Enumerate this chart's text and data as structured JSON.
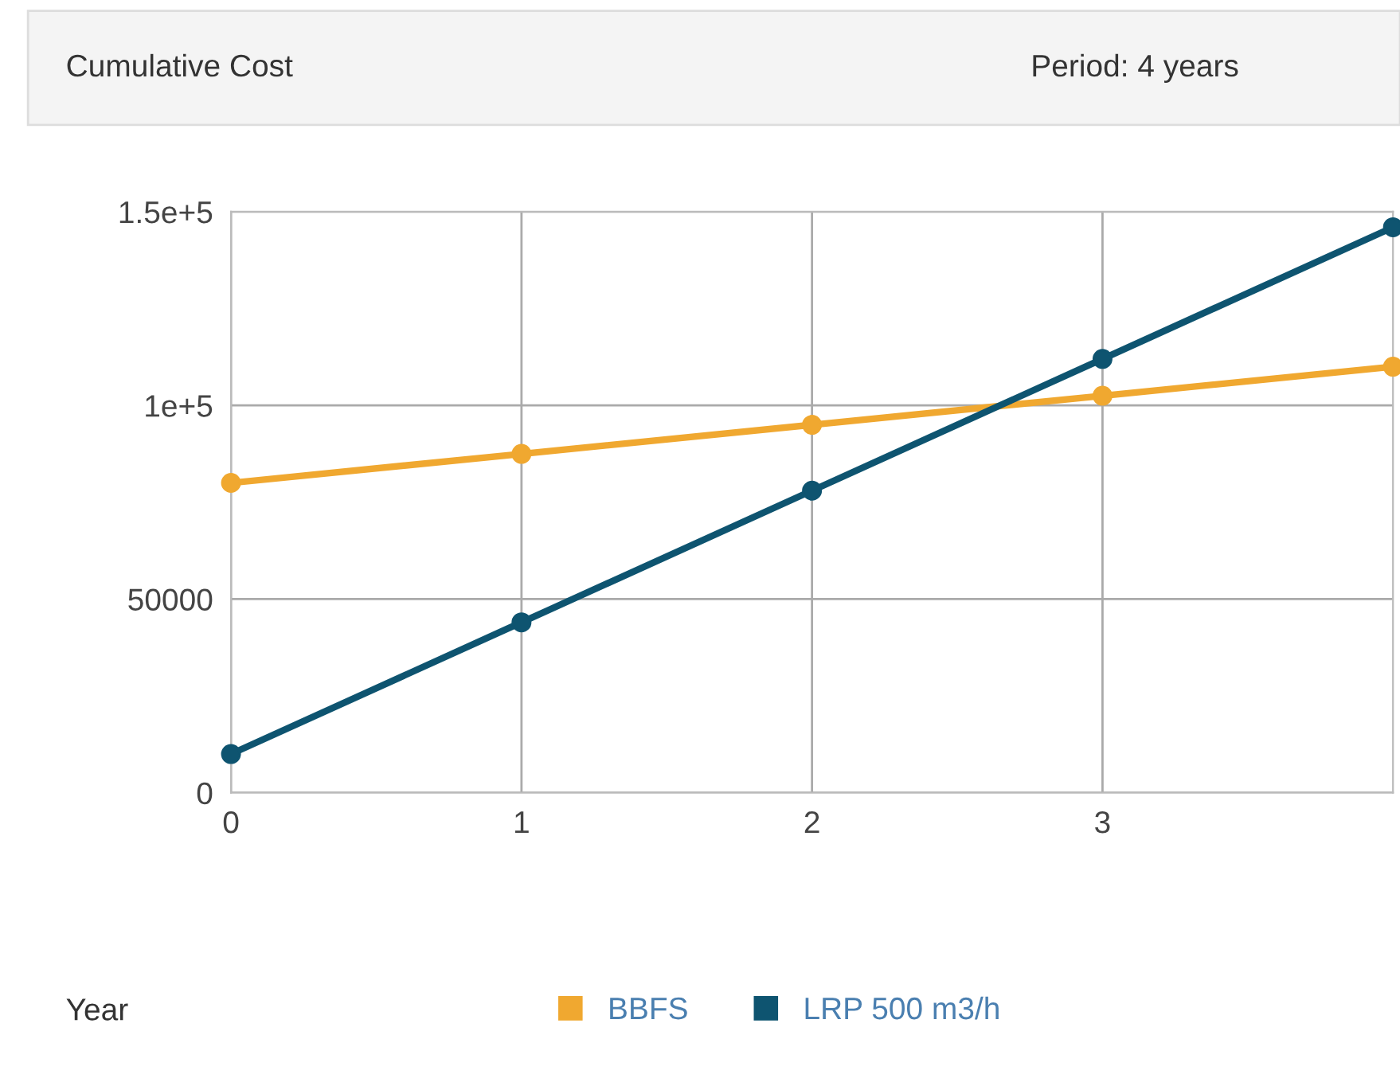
{
  "chart_data": {
    "type": "line",
    "title": "Cumulative Cost",
    "subtitle": "Period: 4 years",
    "annotations": [
      "Year"
    ],
    "x": [
      0,
      1,
      2,
      3,
      4
    ],
    "series": [
      {
        "name": "BBFS",
        "color": "#f0a830",
        "values": [
          80000,
          87500,
          95000,
          102500,
          110000
        ]
      },
      {
        "name": "LRP 500 m3/h",
        "color": "#0e5470",
        "values": [
          10000,
          44000,
          78000,
          112000,
          146000
        ]
      }
    ],
    "xlim": [
      0,
      4
    ],
    "xticks": [
      0,
      1,
      2,
      3
    ],
    "ylim": [
      0,
      150000
    ],
    "yticks": [
      0,
      50000,
      {
        "value": 100000,
        "label": "1e+5"
      },
      {
        "value": 150000,
        "label": "1.5e+5"
      }
    ],
    "grid": true,
    "legend": "bottom",
    "marker": "circle",
    "line_style": "solid"
  }
}
